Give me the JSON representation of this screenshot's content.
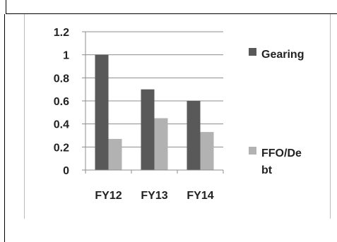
{
  "chart_data": {
    "type": "bar",
    "categories": [
      "FY12",
      "FY13",
      "FY14"
    ],
    "series": [
      {
        "name": "Gearing",
        "values": [
          1.0,
          0.7,
          0.6
        ],
        "color": "#595959"
      },
      {
        "name": "FFO/Debt",
        "legend_lines": [
          "FFO/De",
          "bt"
        ],
        "values": [
          0.27,
          0.45,
          0.33
        ],
        "color": "#b2b2b2"
      }
    ],
    "yticks": [
      "0",
      "0.2",
      "0.4",
      "0.6",
      "0.8",
      "1",
      "1.2"
    ],
    "ylim": [
      0,
      1.2
    ],
    "grid": true,
    "legend_position": "right",
    "title": "",
    "xlabel": "",
    "ylabel": ""
  }
}
